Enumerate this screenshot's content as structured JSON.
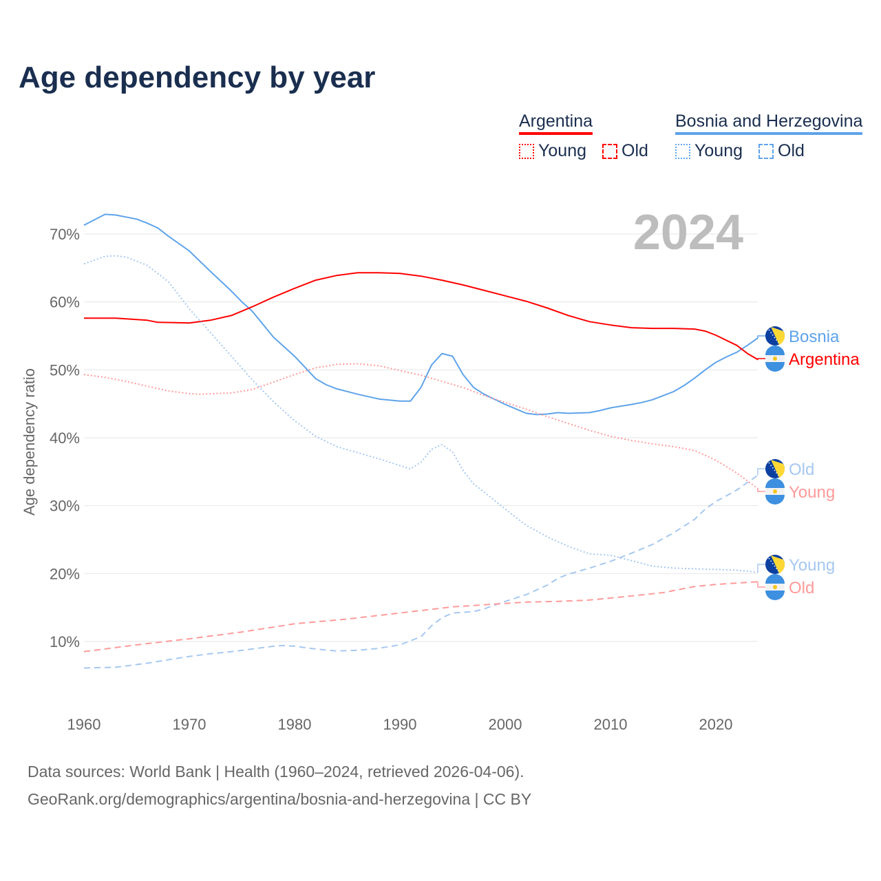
{
  "title": "Age dependency by year",
  "legend": {
    "groups": [
      {
        "country": "Argentina",
        "color": "#ff0000",
        "items": [
          "Young",
          "Old"
        ]
      },
      {
        "country": "Bosnia and Herzegovina",
        "color": "#5ea3ea",
        "items": [
          "Young",
          "Old"
        ]
      }
    ]
  },
  "footer": {
    "line1": "Data sources: World Bank | Health (1960–2024, retrieved 2026-04-06).",
    "line2": "GeoRank.org/demographics/argentina/bosnia-and-herzegovina | CC BY"
  },
  "chart_data": {
    "type": "line",
    "title": "Age dependency by year",
    "ylabel": "Age dependency ratio",
    "xlabel": "",
    "year_label": "2024",
    "xlim": [
      1960,
      2024
    ],
    "ylim": [
      0,
      75
    ],
    "x_ticks": [
      "1960",
      "1970",
      "1980",
      "1990",
      "2000",
      "2010",
      "2020"
    ],
    "y_ticks": [
      "10%",
      "20%",
      "30%",
      "40%",
      "50%",
      "60%",
      "70%"
    ],
    "grid": true,
    "series": [
      {
        "name": "Bosnia",
        "country": "Bosnia and Herzegovina",
        "kind": "total",
        "end_label": "Bosnia",
        "color": "#5ea3ea",
        "dash": "solid",
        "points": [
          [
            1960,
            71.3
          ],
          [
            1962,
            72.9
          ],
          [
            1963,
            72.8
          ],
          [
            1965,
            72.2
          ],
          [
            1966,
            71.6
          ],
          [
            1967,
            70.9
          ],
          [
            1968,
            69.7
          ],
          [
            1970,
            67.5
          ],
          [
            1972,
            64.5
          ],
          [
            1974,
            61.6
          ],
          [
            1975,
            60.0
          ],
          [
            1976,
            58.6
          ],
          [
            1978,
            54.8
          ],
          [
            1980,
            52.0
          ],
          [
            1982,
            48.7
          ],
          [
            1983,
            47.8
          ],
          [
            1984,
            47.2
          ],
          [
            1986,
            46.4
          ],
          [
            1988,
            45.7
          ],
          [
            1990,
            45.4
          ],
          [
            1991,
            45.4
          ],
          [
            1992,
            47.4
          ],
          [
            1993,
            50.7
          ],
          [
            1994,
            52.4
          ],
          [
            1995,
            52.0
          ],
          [
            1996,
            49.3
          ],
          [
            1997,
            47.4
          ],
          [
            1998,
            46.4
          ],
          [
            2000,
            44.9
          ],
          [
            2002,
            43.6
          ],
          [
            2003,
            43.4
          ],
          [
            2004,
            43.5
          ],
          [
            2005,
            43.7
          ],
          [
            2006,
            43.6
          ],
          [
            2008,
            43.7
          ],
          [
            2009,
            44.0
          ],
          [
            2010,
            44.4
          ],
          [
            2012,
            44.9
          ],
          [
            2013,
            45.2
          ],
          [
            2014,
            45.6
          ],
          [
            2016,
            46.8
          ],
          [
            2017,
            47.7
          ],
          [
            2018,
            48.8
          ],
          [
            2019,
            50.0
          ],
          [
            2020,
            51.1
          ],
          [
            2021,
            51.9
          ],
          [
            2022,
            52.6
          ],
          [
            2023,
            53.6
          ],
          [
            2024,
            54.7
          ]
        ]
      },
      {
        "name": "Argentina",
        "country": "Argentina",
        "kind": "total",
        "end_label": "Argentina",
        "color": "#ff0000",
        "dash": "solid",
        "points": [
          [
            1960,
            57.6
          ],
          [
            1963,
            57.6
          ],
          [
            1966,
            57.3
          ],
          [
            1967,
            57.0
          ],
          [
            1970,
            56.9
          ],
          [
            1972,
            57.3
          ],
          [
            1974,
            58.0
          ],
          [
            1976,
            59.3
          ],
          [
            1978,
            60.7
          ],
          [
            1980,
            62.0
          ],
          [
            1982,
            63.2
          ],
          [
            1984,
            63.9
          ],
          [
            1986,
            64.3
          ],
          [
            1988,
            64.3
          ],
          [
            1990,
            64.2
          ],
          [
            1992,
            63.8
          ],
          [
            1994,
            63.2
          ],
          [
            1996,
            62.5
          ],
          [
            1998,
            61.7
          ],
          [
            2000,
            60.9
          ],
          [
            2002,
            60.1
          ],
          [
            2004,
            59.1
          ],
          [
            2006,
            58.0
          ],
          [
            2008,
            57.1
          ],
          [
            2010,
            56.6
          ],
          [
            2012,
            56.2
          ],
          [
            2014,
            56.1
          ],
          [
            2016,
            56.1
          ],
          [
            2018,
            56.0
          ],
          [
            2019,
            55.7
          ],
          [
            2020,
            55.1
          ],
          [
            2022,
            53.6
          ],
          [
            2023,
            52.4
          ],
          [
            2024,
            51.5
          ]
        ]
      },
      {
        "name": "Bosnia Old",
        "country": "Bosnia and Herzegovina",
        "kind": "old",
        "end_label": "Old",
        "color": "#a6c8f0",
        "dash": "dashed",
        "points": [
          [
            1960,
            6.1
          ],
          [
            1963,
            6.2
          ],
          [
            1966,
            6.8
          ],
          [
            1968,
            7.3
          ],
          [
            1970,
            7.8
          ],
          [
            1972,
            8.2
          ],
          [
            1974,
            8.5
          ],
          [
            1976,
            8.9
          ],
          [
            1978,
            9.3
          ],
          [
            1979,
            9.4
          ],
          [
            1980,
            9.3
          ],
          [
            1982,
            8.9
          ],
          [
            1984,
            8.6
          ],
          [
            1986,
            8.7
          ],
          [
            1988,
            9.0
          ],
          [
            1990,
            9.5
          ],
          [
            1992,
            10.7
          ],
          [
            1993,
            12.3
          ],
          [
            1994,
            13.5
          ],
          [
            1995,
            14.2
          ],
          [
            1997,
            14.4
          ],
          [
            1998,
            14.8
          ],
          [
            2000,
            15.9
          ],
          [
            2002,
            16.9
          ],
          [
            2004,
            18.3
          ],
          [
            2005,
            19.3
          ],
          [
            2006,
            19.9
          ],
          [
            2008,
            20.8
          ],
          [
            2010,
            21.8
          ],
          [
            2012,
            23.0
          ],
          [
            2014,
            24.3
          ],
          [
            2016,
            26.0
          ],
          [
            2018,
            28.0
          ],
          [
            2019,
            29.5
          ],
          [
            2020,
            30.6
          ],
          [
            2022,
            32.3
          ],
          [
            2024,
            34.5
          ]
        ]
      },
      {
        "name": "Argentina Young",
        "country": "Argentina",
        "kind": "young",
        "end_label": "Young",
        "color": "#ff9a9a",
        "dash": "dotted",
        "points": [
          [
            1960,
            49.3
          ],
          [
            1962,
            48.9
          ],
          [
            1964,
            48.3
          ],
          [
            1966,
            47.6
          ],
          [
            1968,
            46.9
          ],
          [
            1970,
            46.5
          ],
          [
            1971,
            46.4
          ],
          [
            1974,
            46.6
          ],
          [
            1976,
            47.1
          ],
          [
            1978,
            48.2
          ],
          [
            1980,
            49.3
          ],
          [
            1982,
            50.3
          ],
          [
            1984,
            50.8
          ],
          [
            1986,
            50.9
          ],
          [
            1988,
            50.6
          ],
          [
            1990,
            49.9
          ],
          [
            1992,
            49.2
          ],
          [
            1994,
            48.3
          ],
          [
            1996,
            47.4
          ],
          [
            1998,
            46.2
          ],
          [
            2000,
            45.2
          ],
          [
            2002,
            44.2
          ],
          [
            2004,
            43.1
          ],
          [
            2006,
            42.1
          ],
          [
            2008,
            41.1
          ],
          [
            2010,
            40.2
          ],
          [
            2012,
            39.6
          ],
          [
            2014,
            39.1
          ],
          [
            2016,
            38.7
          ],
          [
            2018,
            38.1
          ],
          [
            2020,
            36.7
          ],
          [
            2022,
            34.8
          ],
          [
            2024,
            32.5
          ]
        ]
      },
      {
        "name": "Bosnia Young",
        "country": "Bosnia and Herzegovina",
        "kind": "young",
        "end_label": "Young",
        "color": "#a6c8f0",
        "dash": "dotted",
        "points": [
          [
            1960,
            65.6
          ],
          [
            1962,
            66.7
          ],
          [
            1963,
            66.8
          ],
          [
            1964,
            66.6
          ],
          [
            1966,
            65.4
          ],
          [
            1968,
            63.0
          ],
          [
            1970,
            59.0
          ],
          [
            1972,
            55.5
          ],
          [
            1974,
            52.0
          ],
          [
            1976,
            48.5
          ],
          [
            1978,
            45.3
          ],
          [
            1980,
            42.5
          ],
          [
            1982,
            40.2
          ],
          [
            1984,
            38.7
          ],
          [
            1986,
            37.8
          ],
          [
            1988,
            36.9
          ],
          [
            1990,
            35.9
          ],
          [
            1991,
            35.4
          ],
          [
            1992,
            36.4
          ],
          [
            1993,
            38.3
          ],
          [
            1994,
            39.0
          ],
          [
            1995,
            37.9
          ],
          [
            1996,
            35.2
          ],
          [
            1997,
            33.2
          ],
          [
            1998,
            32.0
          ],
          [
            2000,
            29.5
          ],
          [
            2002,
            27.1
          ],
          [
            2004,
            25.4
          ],
          [
            2006,
            24.0
          ],
          [
            2008,
            22.9
          ],
          [
            2010,
            22.7
          ],
          [
            2012,
            21.9
          ],
          [
            2014,
            21.1
          ],
          [
            2016,
            20.8
          ],
          [
            2018,
            20.7
          ],
          [
            2020,
            20.6
          ],
          [
            2022,
            20.5
          ],
          [
            2024,
            20.2
          ]
        ]
      },
      {
        "name": "Argentina Old",
        "country": "Argentina",
        "kind": "old",
        "end_label": "Old",
        "color": "#ff9a9a",
        "dash": "dashed",
        "points": [
          [
            1960,
            8.5
          ],
          [
            1965,
            9.5
          ],
          [
            1970,
            10.4
          ],
          [
            1975,
            11.4
          ],
          [
            1980,
            12.6
          ],
          [
            1985,
            13.3
          ],
          [
            1990,
            14.2
          ],
          [
            1995,
            15.1
          ],
          [
            2000,
            15.6
          ],
          [
            2002,
            15.8
          ],
          [
            2005,
            15.9
          ],
          [
            2008,
            16.1
          ],
          [
            2010,
            16.4
          ],
          [
            2012,
            16.7
          ],
          [
            2015,
            17.2
          ],
          [
            2018,
            18.1
          ],
          [
            2020,
            18.4
          ],
          [
            2024,
            18.8
          ]
        ]
      }
    ]
  }
}
